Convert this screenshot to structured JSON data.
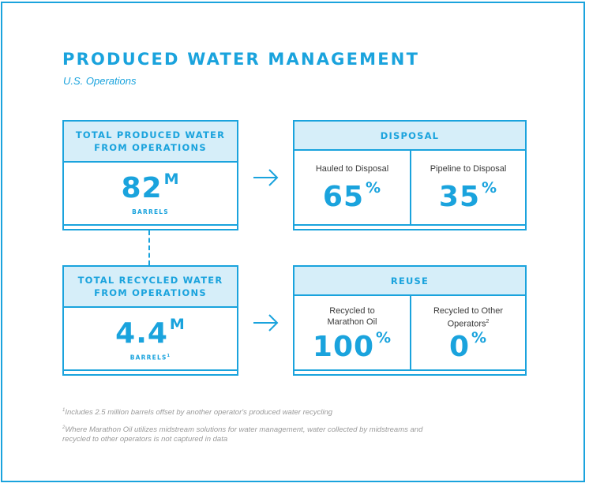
{
  "header": {
    "title": "PRODUCED WATER MANAGEMENT",
    "subtitle": "U.S. Operations"
  },
  "produced": {
    "heading_line1": "TOTAL PRODUCED WATER",
    "heading_line2": "FROM OPERATIONS",
    "value": "82",
    "unit_suffix": "M",
    "label": "BARRELS"
  },
  "recycled": {
    "heading_line1": "TOTAL RECYCLED WATER",
    "heading_line2": "FROM OPERATIONS",
    "value": "4.4",
    "unit_suffix": "M",
    "label": "BARRELS",
    "label_footnote": "1"
  },
  "disposal": {
    "heading": "DISPOSAL",
    "hauled_label": "Hauled to Disposal",
    "hauled_value": "65",
    "pipeline_label": "Pipeline to Disposal",
    "pipeline_value": "35"
  },
  "reuse": {
    "heading": "REUSE",
    "marathon_label_line1": "Recycled to",
    "marathon_label_line2": "Marathon Oil",
    "marathon_value": "100",
    "other_label_line1": "Recycled to Other",
    "other_label_line2": "Operators",
    "other_footnote": "2",
    "other_value": "0"
  },
  "percent_sign": "%",
  "footnotes": {
    "note1_marker": "1",
    "note1": "Includes 2.5 million barrels offset by another operator's produced water recycling",
    "note2_marker": "2",
    "note2": "Where Marathon Oil utilizes midstream solutions for water management, water collected by midstreams and recycled to other operators is not captured in data"
  },
  "colors": {
    "accent": "#1aa3dd",
    "header_fill": "#d6eef9",
    "note_text": "#9a9a9a"
  },
  "icons": [
    "right-arrow-icon",
    "right-arrow-icon"
  ]
}
